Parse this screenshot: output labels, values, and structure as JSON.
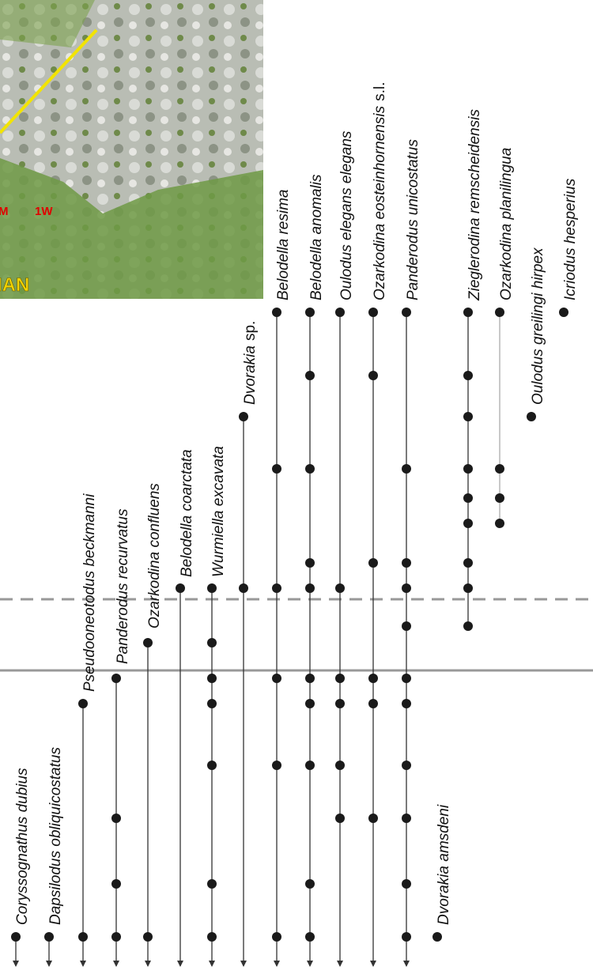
{
  "photo": {
    "labels": [
      "M",
      "1W",
      "IAN"
    ]
  },
  "taxa": [
    {
      "name": "Coryssognathus dubius"
    },
    {
      "name": "Dapsilodus obliquicostatus"
    },
    {
      "name": "Pseudooneotodus beckmanni"
    },
    {
      "name": "Panderodus recurvatus"
    },
    {
      "name": "Ozarkodina confluens"
    },
    {
      "name": "Belodella coarctata"
    },
    {
      "name": "Wurmiella excavata"
    },
    {
      "name": "Dvorakia",
      "suffix": "sp."
    },
    {
      "name": "Belodella resima"
    },
    {
      "name": "Belodella anomalis"
    },
    {
      "name": "Oulodus elegans elegans"
    },
    {
      "name": "Ozarkodina eosteinhornensis",
      "suffix": "s.l."
    },
    {
      "name": "Panderodus unicostatus"
    },
    {
      "name": "Dvorakia amsdeni"
    },
    {
      "name": "Zieglerodina remscheidensis"
    },
    {
      "name": "Ozarkodina planilingua"
    },
    {
      "name": "Oulodus greilingi hirpex"
    },
    {
      "name": "Icriodus hesperius"
    }
  ]
}
